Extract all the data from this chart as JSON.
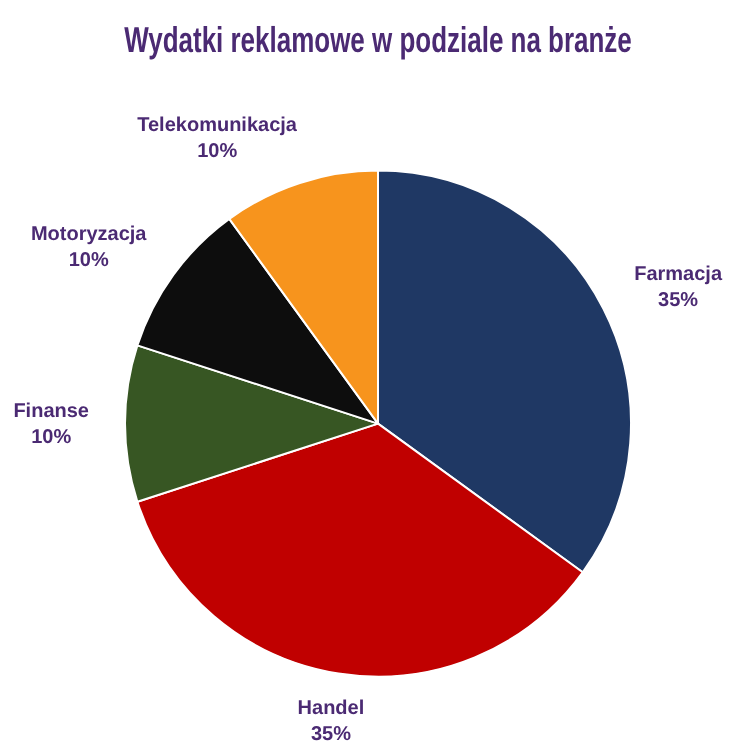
{
  "chart_data": {
    "type": "pie",
    "title": "Wydatki reklamowe w podziale na branże",
    "categories": [
      "Farmacja",
      "Handel",
      "Finanse",
      "Motoryzacja",
      "Telekomunikacja"
    ],
    "values": [
      35,
      35,
      10,
      10,
      10
    ],
    "value_labels": [
      "35%",
      "35%",
      "10%",
      "10%",
      "10%"
    ],
    "colors": [
      "#1f3864",
      "#c00000",
      "#375623",
      "#0d0d0d",
      "#f7941d"
    ],
    "legend": false
  }
}
